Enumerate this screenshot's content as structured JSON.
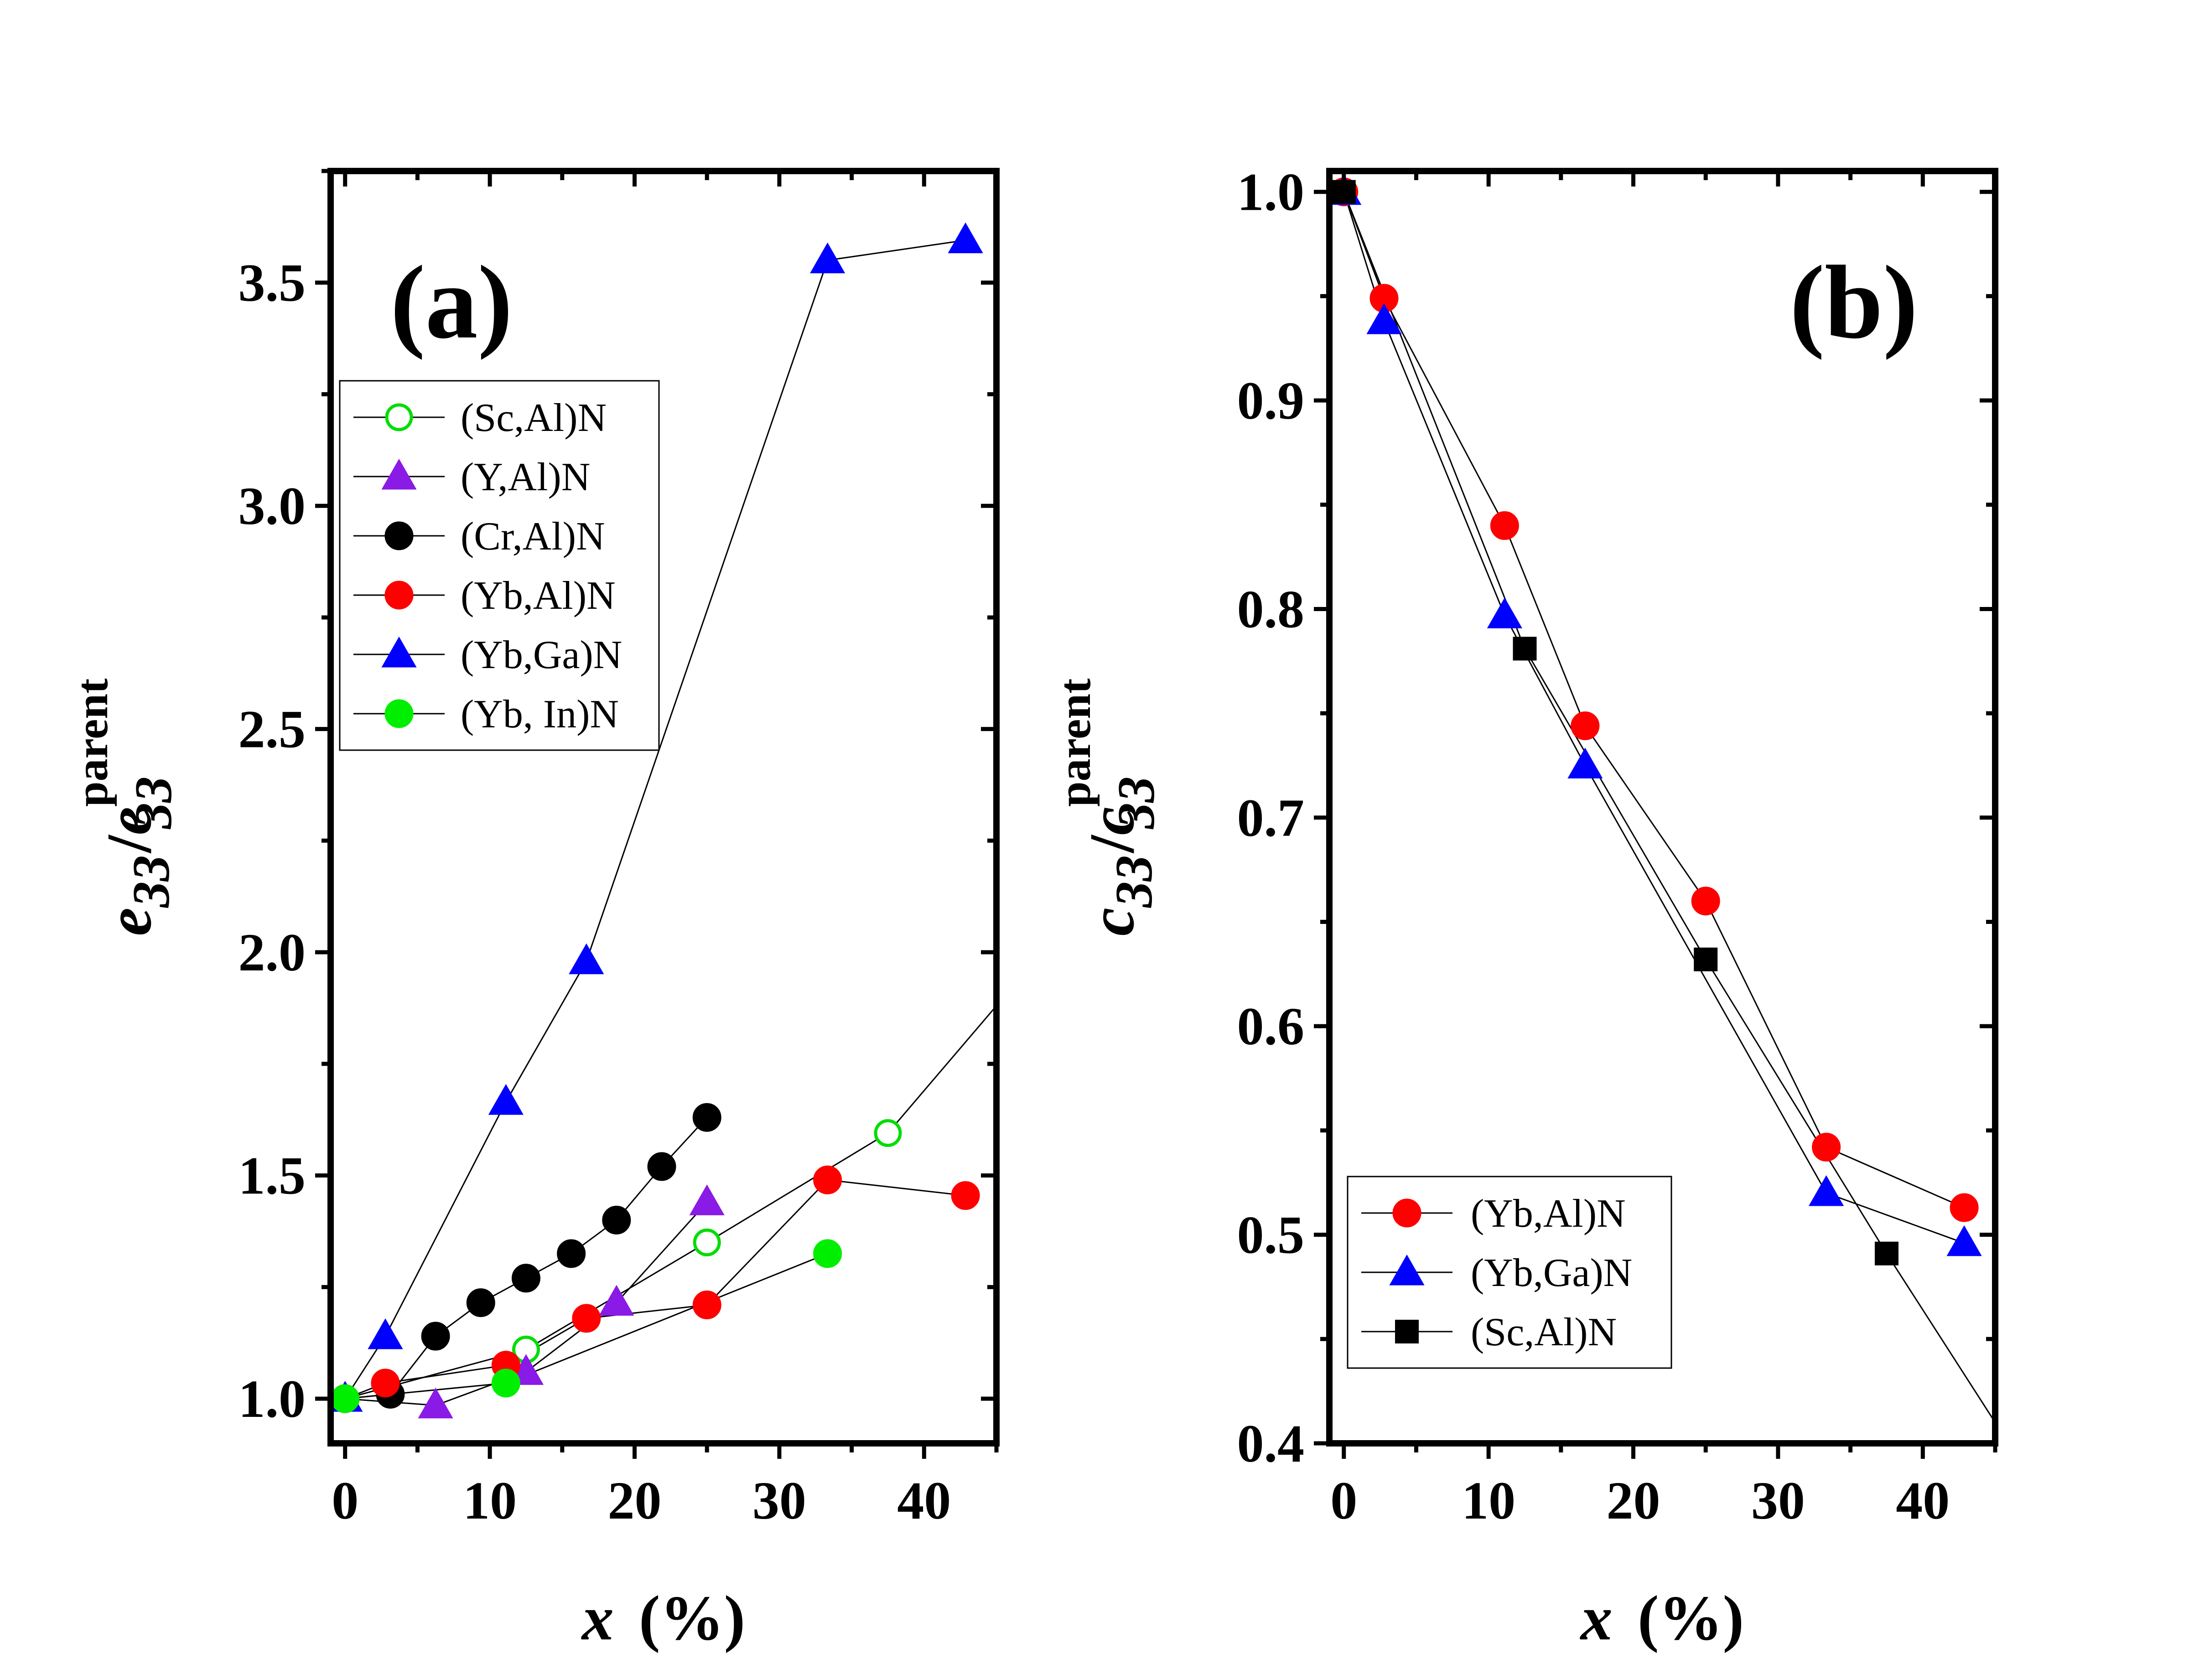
{
  "chart_data": [
    {
      "type": "line",
      "panel_label": "(a)",
      "xlabel": "x (%)",
      "xlabel_var": "x",
      "xlabel_unit": "(%)",
      "ylabel": "e33/e33parent",
      "ylabel_parts": {
        "base": "e",
        "sub": "33",
        "sup": "parent",
        "slash": "/"
      },
      "xlim": [
        -1,
        45
      ],
      "ylim": [
        0.9,
        3.75
      ],
      "xticks": [
        0,
        10,
        20,
        30,
        40
      ],
      "xtick_labels": [
        "0",
        "10",
        "20",
        "30",
        "40"
      ],
      "yticks": [
        1.0,
        1.5,
        2.0,
        2.5,
        3.0,
        3.5
      ],
      "ytick_labels": [
        "1.0",
        "1.5",
        "2.0",
        "2.5",
        "3.0",
        "3.5"
      ],
      "legend_position": "upper-left",
      "series": [
        {
          "name": "(Sc,Al)N",
          "marker": "circle-open",
          "color": "#00dd00",
          "x": [
            0,
            12.5,
            25,
            37.5,
            45
          ],
          "y": [
            1.0,
            1.11,
            1.35,
            1.595,
            1.88
          ]
        },
        {
          "name": "(Y,Al)N",
          "marker": "triangle",
          "color": "#8a1ae6",
          "x": [
            0,
            6.25,
            12.5,
            18.75,
            25
          ],
          "y": [
            1.0,
            0.985,
            1.06,
            1.215,
            1.44
          ]
        },
        {
          "name": "(Cr,Al)N",
          "marker": "circle",
          "color": "#000000",
          "x": [
            0,
            3.125,
            6.25,
            9.375,
            12.5,
            15.625,
            18.75,
            21.875,
            25
          ],
          "y": [
            1.0,
            1.01,
            1.14,
            1.215,
            1.27,
            1.325,
            1.4,
            1.52,
            1.63
          ]
        },
        {
          "name": "(Yb,Al)N",
          "marker": "circle",
          "color": "#ff0000",
          "x": [
            0,
            2.78,
            11.11,
            16.67,
            25,
            33.33,
            42.86
          ],
          "y": [
            1.0,
            1.035,
            1.075,
            1.18,
            1.21,
            1.49,
            1.455
          ]
        },
        {
          "name": "(Yb,Ga)N",
          "marker": "triangle",
          "color": "#0000ff",
          "x": [
            0,
            2.78,
            11.11,
            16.67,
            33.33,
            42.86
          ],
          "y": [
            1.0,
            1.14,
            1.665,
            1.98,
            3.55,
            3.595
          ]
        },
        {
          "name": "(Yb, In)N",
          "marker": "circle",
          "color": "#00ee00",
          "x": [
            0,
            11.11,
            33.33
          ],
          "y": [
            1.0,
            1.035,
            1.325
          ]
        }
      ]
    },
    {
      "type": "line",
      "panel_label": "(b)",
      "xlabel": "x (%)",
      "xlabel_var": "x",
      "xlabel_unit": "(%)",
      "ylabel": "c33/c33parent",
      "ylabel_parts": {
        "base": "c",
        "sub": "33",
        "sup": "parent",
        "slash": "/"
      },
      "xlim": [
        -1,
        45
      ],
      "ylim": [
        0.4,
        1.01
      ],
      "xticks": [
        0,
        10,
        20,
        30,
        40
      ],
      "xtick_labels": [
        "0",
        "10",
        "20",
        "30",
        "40"
      ],
      "yticks": [
        0.4,
        0.5,
        0.6,
        0.7,
        0.8,
        0.9,
        1.0
      ],
      "ytick_labels": [
        "0.4",
        "0.5",
        "0.6",
        "0.7",
        "0.8",
        "0.9",
        "1.0"
      ],
      "legend_position": "lower-left",
      "series": [
        {
          "name": "(Yb,Al)N",
          "marker": "circle",
          "color": "#ff0000",
          "x": [
            0,
            2.78,
            11.11,
            16.67,
            25,
            33.33,
            42.86
          ],
          "y": [
            1.0,
            0.949,
            0.84,
            0.744,
            0.66,
            0.542,
            0.513
          ]
        },
        {
          "name": "(Yb,Ga)N",
          "marker": "triangle",
          "color": "#0000ff",
          "x": [
            0,
            2.78,
            11.11,
            16.67,
            33.33,
            42.86
          ],
          "y": [
            1.0,
            0.938,
            0.797,
            0.725,
            0.52,
            0.496
          ]
        },
        {
          "name": "(Sc,Al)N",
          "marker": "square",
          "color": "#000000",
          "x": [
            0,
            12.5,
            25,
            37.5,
            45
          ],
          "y": [
            1.0,
            0.781,
            0.632,
            0.491,
            0.41
          ]
        }
      ]
    }
  ]
}
